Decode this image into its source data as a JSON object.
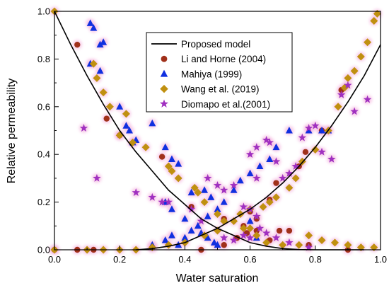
{
  "chart_data": {
    "type": "scatter",
    "xlabel": "Water saturation",
    "ylabel": "Relative permeability",
    "xlim": [
      0.0,
      1.0
    ],
    "ylim": [
      0.0,
      1.0
    ],
    "xticks": [
      "0.0",
      "0.2",
      "0.4",
      "0.6",
      "0.8",
      "1.0"
    ],
    "yticks": [
      "0.0",
      "0.2",
      "0.4",
      "0.6",
      "0.8",
      "1.0"
    ],
    "grid": false,
    "legend_position": "top-center",
    "series": [
      {
        "name": "Proposed model",
        "kind": "line",
        "color": "#000000",
        "curves": [
          {
            "x": [
              0.0,
              0.05,
              0.1,
              0.15,
              0.2,
              0.25,
              0.3,
              0.35,
              0.4,
              0.45,
              0.5,
              0.55,
              0.6,
              0.65,
              0.7,
              0.75,
              0.8,
              0.85,
              0.9,
              0.95
            ],
            "y": [
              1.0,
              0.86,
              0.73,
              0.61,
              0.5,
              0.41,
              0.33,
              0.25,
              0.19,
              0.13,
              0.09,
              0.06,
              0.03,
              0.015,
              0.005,
              0.001,
              0.0,
              0.0,
              0.0,
              0.0
            ]
          },
          {
            "x": [
              0.25,
              0.3,
              0.35,
              0.4,
              0.45,
              0.5,
              0.55,
              0.6,
              0.65,
              0.7,
              0.75,
              0.8,
              0.85,
              0.9,
              0.95,
              1.0
            ],
            "y": [
              0.0,
              0.005,
              0.015,
              0.03,
              0.06,
              0.09,
              0.13,
              0.17,
              0.22,
              0.28,
              0.35,
              0.43,
              0.52,
              0.62,
              0.73,
              0.86
            ]
          }
        ]
      },
      {
        "name": "Li and Horne (2004)",
        "kind": "circle",
        "color": "#a0301a",
        "points": [
          [
            0.07,
            0.86
          ],
          [
            0.16,
            0.55
          ],
          [
            0.2,
            0.48
          ],
          [
            0.33,
            0.39
          ],
          [
            0.42,
            0.18
          ],
          [
            0.52,
            0.13
          ],
          [
            0.58,
            0.1
          ],
          [
            0.6,
            0.16
          ],
          [
            0.62,
            0.08
          ],
          [
            0.66,
            0.21
          ],
          [
            0.68,
            0.28
          ],
          [
            0.69,
            0.08
          ],
          [
            0.75,
            0.35
          ],
          [
            0.77,
            0.41
          ],
          [
            0.82,
            0.5
          ],
          [
            0.88,
            0.67
          ],
          [
            0.0,
            0.0
          ],
          [
            0.07,
            0.0
          ],
          [
            0.12,
            0.0
          ],
          [
            0.3,
            0.01
          ],
          [
            0.45,
            0.0
          ],
          [
            0.52,
            0.02
          ],
          [
            0.56,
            0.05
          ],
          [
            0.59,
            0.07
          ],
          [
            0.62,
            0.13
          ],
          [
            0.66,
            0.04
          ],
          [
            0.72,
            0.08
          ],
          [
            0.78,
            0.02
          ],
          [
            0.9,
            0.0
          ]
        ]
      },
      {
        "name": "Mahiya (1999)",
        "kind": "triangle",
        "color": "#1030e0",
        "points": [
          [
            0.11,
            0.95
          ],
          [
            0.12,
            0.93
          ],
          [
            0.14,
            0.86
          ],
          [
            0.15,
            0.87
          ],
          [
            0.11,
            0.78
          ],
          [
            0.14,
            0.75
          ],
          [
            0.2,
            0.6
          ],
          [
            0.22,
            0.52
          ],
          [
            0.23,
            0.5
          ],
          [
            0.24,
            0.45
          ],
          [
            0.25,
            0.46
          ],
          [
            0.3,
            0.53
          ],
          [
            0.34,
            0.43
          ],
          [
            0.36,
            0.38
          ],
          [
            0.38,
            0.36
          ],
          [
            0.42,
            0.24
          ],
          [
            0.46,
            0.25
          ],
          [
            0.48,
            0.22
          ],
          [
            0.34,
            0.2
          ],
          [
            0.36,
            0.17
          ],
          [
            0.4,
            0.13
          ],
          [
            0.42,
            0.08
          ],
          [
            0.45,
            0.07
          ],
          [
            0.47,
            0.05
          ],
          [
            0.49,
            0.03
          ],
          [
            0.5,
            0.02
          ],
          [
            0.3,
            0.02
          ],
          [
            0.34,
            0.04
          ],
          [
            0.36,
            0.06
          ],
          [
            0.38,
            0.02
          ],
          [
            0.4,
            0.05
          ],
          [
            0.44,
            0.1
          ],
          [
            0.47,
            0.14
          ],
          [
            0.5,
            0.17
          ],
          [
            0.52,
            0.2
          ],
          [
            0.55,
            0.25
          ],
          [
            0.57,
            0.29
          ],
          [
            0.6,
            0.32
          ],
          [
            0.63,
            0.35
          ],
          [
            0.66,
            0.38
          ],
          [
            0.68,
            0.43
          ],
          [
            0.72,
            0.5
          ],
          [
            0.78,
            0.5
          ],
          [
            0.82,
            0.5
          ],
          [
            0.84,
            0.5
          ],
          [
            0.6,
            0.12
          ],
          [
            0.62,
            0.05
          ]
        ]
      },
      {
        "name": "Wang et al. (2019)",
        "kind": "diamond",
        "color": "#c09010",
        "points": [
          [
            0.0,
            1.0
          ],
          [
            0.12,
            0.78
          ],
          [
            0.13,
            0.72
          ],
          [
            0.15,
            0.66
          ],
          [
            0.17,
            0.6
          ],
          [
            0.2,
            0.48
          ],
          [
            0.22,
            0.57
          ],
          [
            0.24,
            0.45
          ],
          [
            0.28,
            0.43
          ],
          [
            0.35,
            0.35
          ],
          [
            0.36,
            0.33
          ],
          [
            0.38,
            0.3
          ],
          [
            0.43,
            0.26
          ],
          [
            0.44,
            0.24
          ],
          [
            0.46,
            0.2
          ],
          [
            0.5,
            0.15
          ],
          [
            0.52,
            0.12
          ],
          [
            0.58,
            0.09
          ],
          [
            0.6,
            0.09
          ],
          [
            0.62,
            0.06
          ],
          [
            0.65,
            0.03
          ],
          [
            0.7,
            0.02
          ],
          [
            0.75,
            0.02
          ],
          [
            0.0,
            0.0
          ],
          [
            0.1,
            0.0
          ],
          [
            0.15,
            0.0
          ],
          [
            0.2,
            0.0
          ],
          [
            0.25,
            0.0
          ],
          [
            0.3,
            0.01
          ],
          [
            0.35,
            0.02
          ],
          [
            0.4,
            0.03
          ],
          [
            0.46,
            0.06
          ],
          [
            0.5,
            0.08
          ],
          [
            0.55,
            0.12
          ],
          [
            0.57,
            0.15
          ],
          [
            0.6,
            0.17
          ],
          [
            0.64,
            0.18
          ],
          [
            0.66,
            0.2
          ],
          [
            0.68,
            0.22
          ],
          [
            0.72,
            0.26
          ],
          [
            0.74,
            0.3
          ],
          [
            0.76,
            0.37
          ],
          [
            0.8,
            0.42
          ],
          [
            0.84,
            0.5
          ],
          [
            0.87,
            0.6
          ],
          [
            0.89,
            0.68
          ],
          [
            0.9,
            0.72
          ],
          [
            0.92,
            0.75
          ],
          [
            0.94,
            0.81
          ],
          [
            0.96,
            0.87
          ],
          [
            0.98,
            0.96
          ],
          [
            0.99,
            0.99
          ],
          [
            0.78,
            0.06
          ],
          [
            0.82,
            0.04
          ],
          [
            0.86,
            0.03
          ],
          [
            0.9,
            0.02
          ],
          [
            0.94,
            0.01
          ],
          [
            0.98,
            0.01
          ]
        ]
      },
      {
        "name": "Diomapo et al.(2001)",
        "kind": "star",
        "color": "#a030c0",
        "points": [
          [
            0.09,
            0.51
          ],
          [
            0.13,
            0.3
          ],
          [
            0.25,
            0.24
          ],
          [
            0.3,
            0.22
          ],
          [
            0.33,
            0.2
          ],
          [
            0.35,
            0.2
          ],
          [
            0.42,
            0.17
          ],
          [
            0.45,
            0.12
          ],
          [
            0.47,
            0.3
          ],
          [
            0.5,
            0.27
          ],
          [
            0.52,
            0.25
          ],
          [
            0.55,
            0.27
          ],
          [
            0.58,
            0.18
          ],
          [
            0.6,
            0.17
          ],
          [
            0.62,
            0.14
          ],
          [
            0.63,
            0.09
          ],
          [
            0.65,
            0.07
          ],
          [
            0.68,
            0.05
          ],
          [
            0.72,
            0.03
          ],
          [
            0.78,
            0.01
          ],
          [
            0.52,
            0.05
          ],
          [
            0.55,
            0.04
          ],
          [
            0.58,
            0.06
          ],
          [
            0.6,
            0.05
          ],
          [
            0.62,
            0.3
          ],
          [
            0.6,
            0.4
          ],
          [
            0.62,
            0.43
          ],
          [
            0.65,
            0.46
          ],
          [
            0.66,
            0.45
          ],
          [
            0.68,
            0.37
          ],
          [
            0.7,
            0.3
          ],
          [
            0.72,
            0.32
          ],
          [
            0.74,
            0.35
          ],
          [
            0.76,
            0.47
          ],
          [
            0.78,
            0.51
          ],
          [
            0.8,
            0.52
          ],
          [
            0.82,
            0.41
          ],
          [
            0.85,
            0.38
          ],
          [
            0.88,
            0.65
          ],
          [
            0.9,
            0.69
          ],
          [
            0.92,
            0.58
          ],
          [
            0.96,
            0.63
          ]
        ]
      }
    ]
  }
}
